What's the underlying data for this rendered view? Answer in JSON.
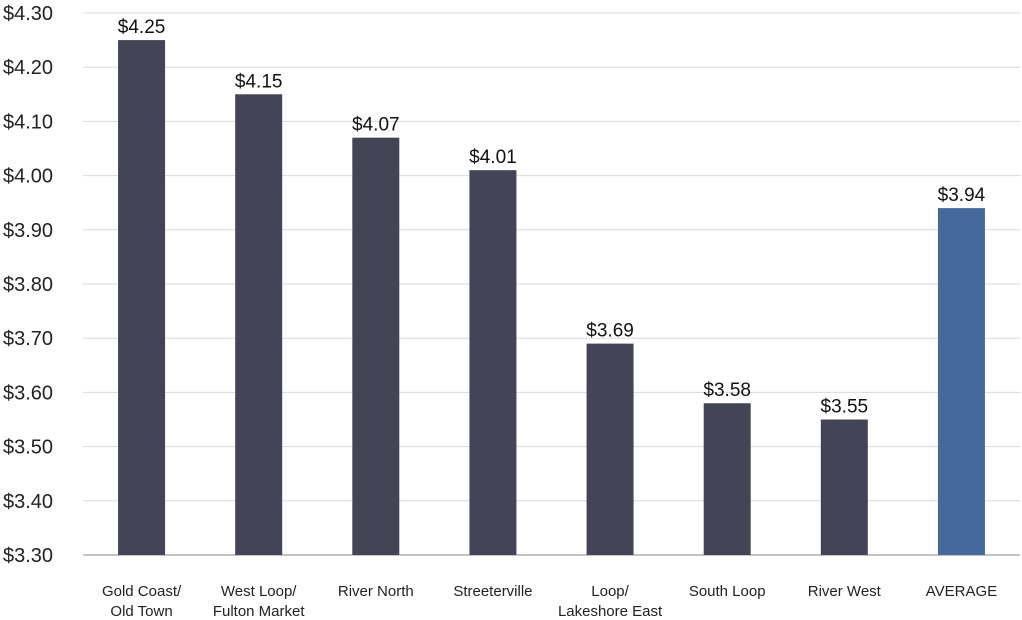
{
  "chart_data": {
    "type": "bar",
    "title": "",
    "xlabel": "",
    "ylabel": "",
    "ylim": [
      3.3,
      4.3
    ],
    "yticks": [
      "$4.30",
      "$4.20",
      "$4.10",
      "$4.00",
      "$3.90",
      "$3.80",
      "$3.70",
      "$3.60",
      "$3.50",
      "$3.40",
      "$3.30"
    ],
    "ytick_values": [
      4.3,
      4.2,
      4.1,
      4.0,
      3.9,
      3.8,
      3.7,
      3.6,
      3.5,
      3.4,
      3.3
    ],
    "grid": true,
    "categories": [
      [
        "Gold Coast/",
        "Old Town"
      ],
      [
        "West Loop/",
        "Fulton Market"
      ],
      [
        "River North"
      ],
      [
        "Streeterville"
      ],
      [
        "Loop/",
        "Lakeshore East"
      ],
      [
        "South Loop"
      ],
      [
        "River West"
      ],
      [
        "AVERAGE"
      ]
    ],
    "values": [
      4.25,
      4.15,
      4.07,
      4.01,
      3.69,
      3.58,
      3.55,
      3.94
    ],
    "data_labels": [
      "$4.25",
      "$4.15",
      "$4.07",
      "$4.01",
      "$3.69",
      "$3.58",
      "$3.55",
      "$3.94"
    ],
    "colors": {
      "bar": "#434455",
      "highlight": "#44699a"
    },
    "highlight_index": 7
  }
}
